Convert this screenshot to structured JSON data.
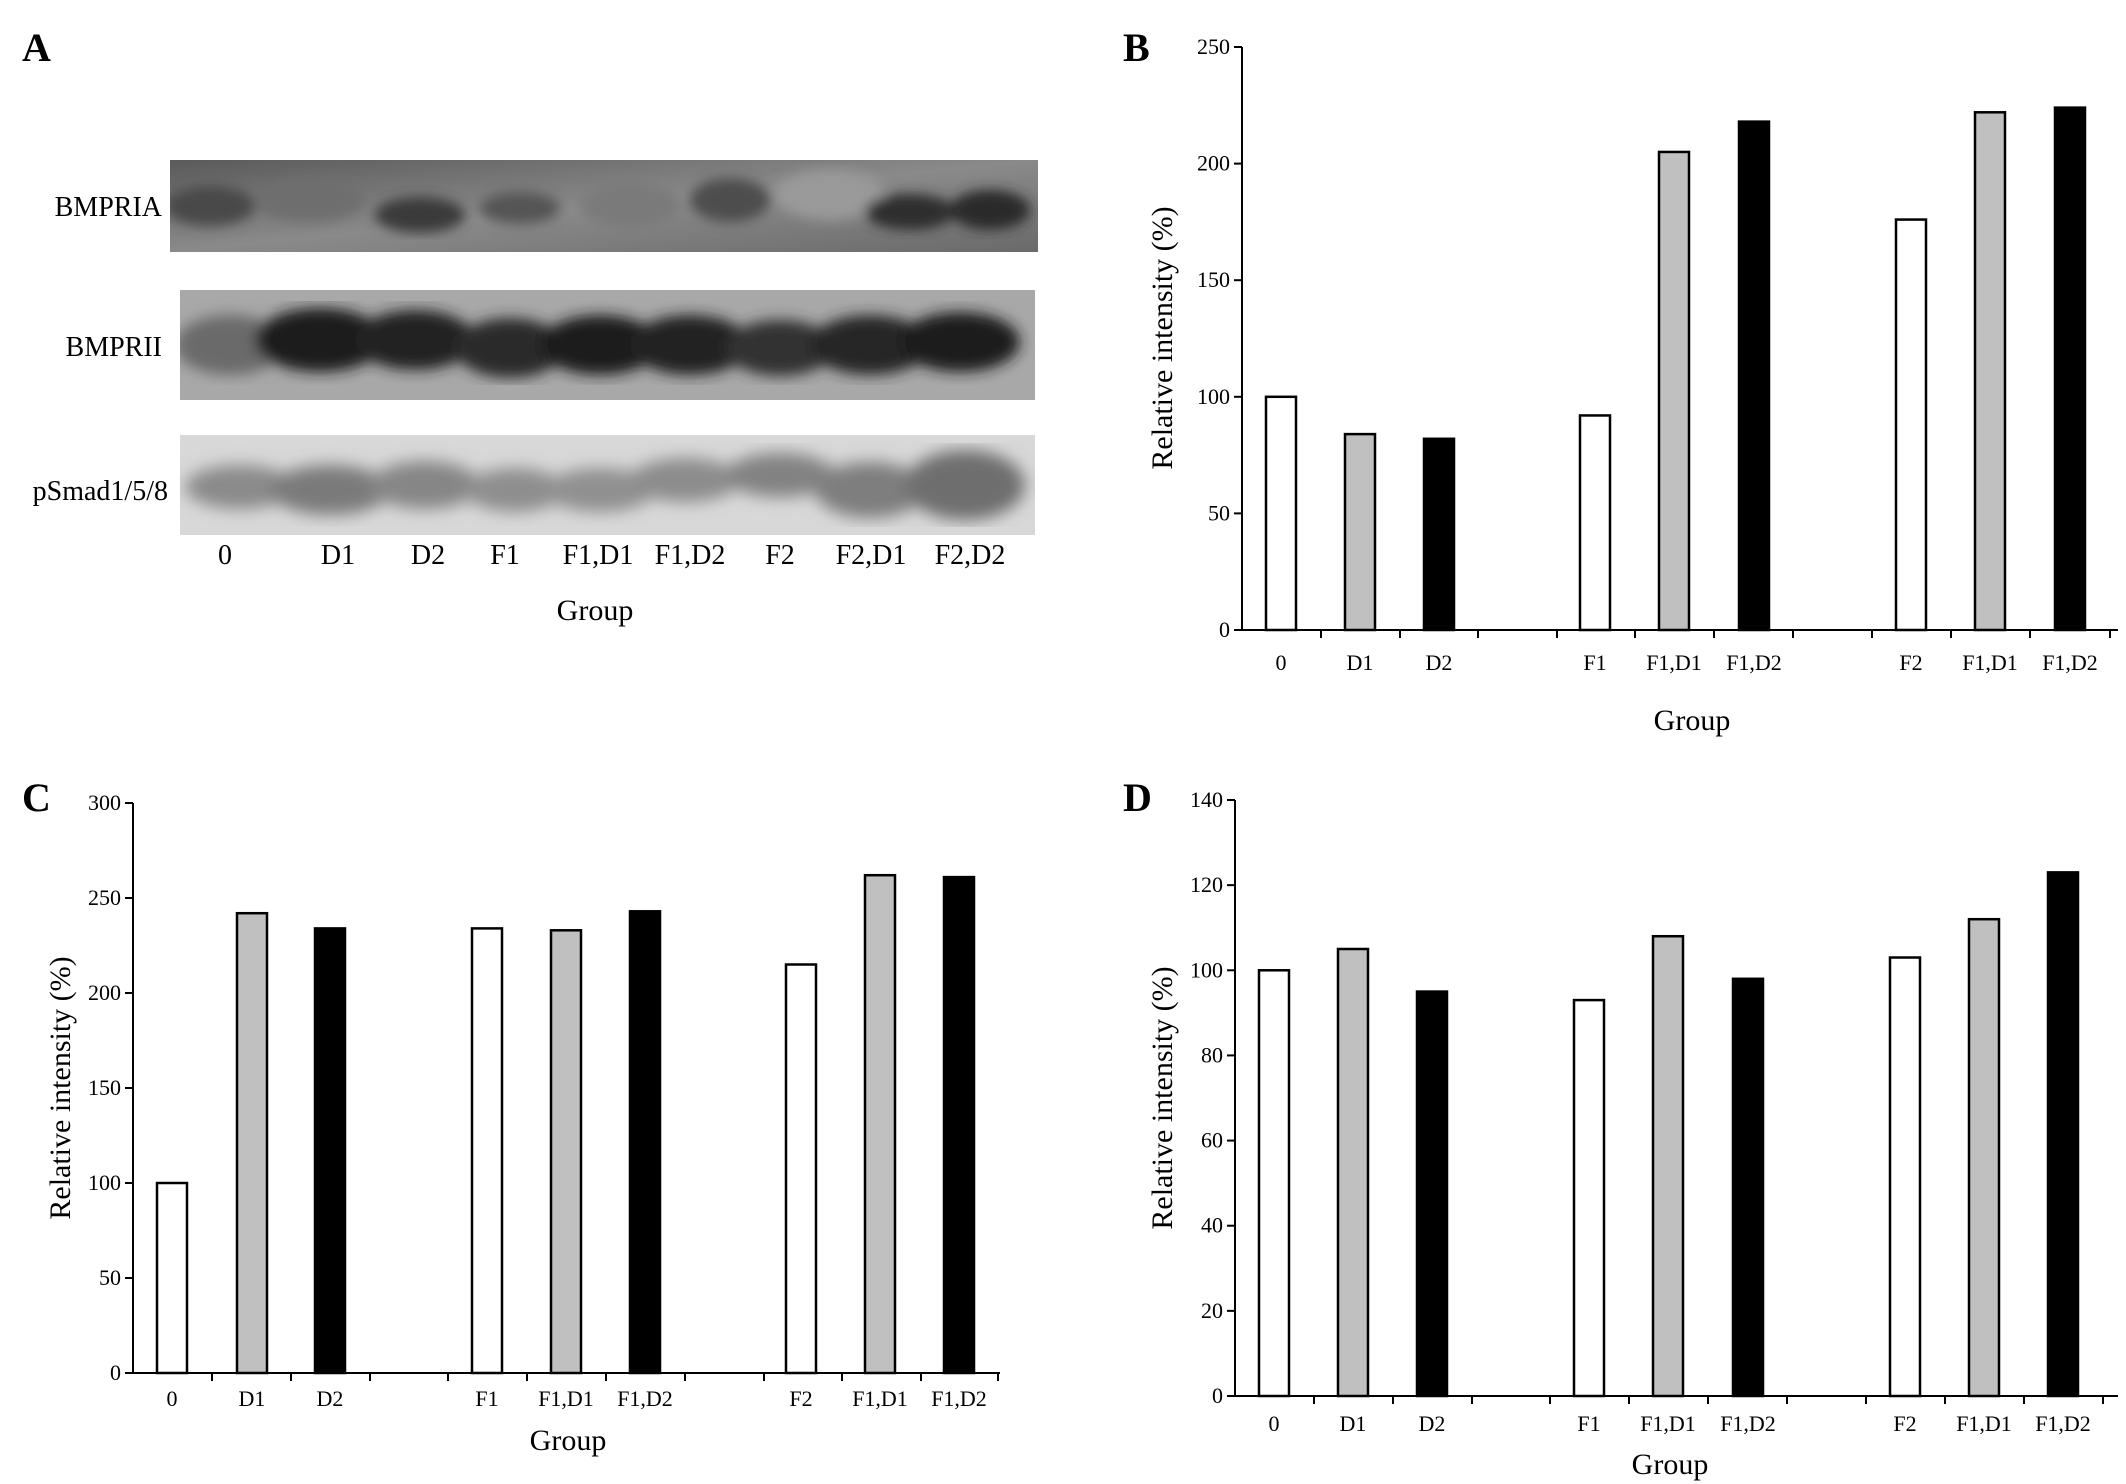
{
  "panels": {
    "a": {
      "letter": "A"
    },
    "b": {
      "letter": "B"
    },
    "c": {
      "letter": "C"
    },
    "d": {
      "letter": "D"
    }
  },
  "blot": {
    "rows": [
      {
        "label": "BMPRIA"
      },
      {
        "label": "BMPRII"
      },
      {
        "label": "pSmad1/5/8"
      }
    ],
    "lanes": [
      "0",
      "D1",
      "D2",
      "F1",
      "F1,D1",
      "F1,D2",
      "F2",
      "F2,D1",
      "F2,D2"
    ],
    "xlabel": "Group"
  },
  "colors": {
    "white": "#ffffff",
    "gray": "#c0c0c0",
    "black": "#000000",
    "outline": "#000000"
  },
  "chart_data": [
    {
      "panel": "B",
      "type": "bar",
      "categories": [
        "0",
        "D1",
        "D2",
        "F1",
        "F1,D1",
        "F1,D2",
        "F2",
        "F1,D1",
        "F1,D2"
      ],
      "values": [
        100,
        84,
        82,
        92,
        205,
        218,
        176,
        222,
        224
      ],
      "bar_colors": [
        "white",
        "gray",
        "black",
        "white",
        "gray",
        "black",
        "white",
        "gray",
        "black"
      ],
      "xlabel": "Group",
      "ylabel": "Relative  intensity (%)",
      "ylim": [
        0,
        250
      ],
      "yticks": [
        0,
        50,
        100,
        150,
        200,
        250
      ],
      "grid": false
    },
    {
      "panel": "C",
      "type": "bar",
      "categories": [
        "0",
        "D1",
        "D2",
        "F1",
        "F1,D1",
        "F1,D2",
        "F2",
        "F1,D1",
        "F1,D2"
      ],
      "values": [
        100,
        242,
        234,
        234,
        233,
        243,
        215,
        262,
        261
      ],
      "bar_colors": [
        "white",
        "gray",
        "black",
        "white",
        "gray",
        "black",
        "white",
        "gray",
        "black"
      ],
      "xlabel": "Group",
      "ylabel": "Relative  intensity (%)",
      "ylim": [
        0,
        300
      ],
      "yticks": [
        0,
        50,
        100,
        150,
        200,
        250,
        300
      ],
      "grid": false
    },
    {
      "panel": "D",
      "type": "bar",
      "categories": [
        "0",
        "D1",
        "D2",
        "F1",
        "F1,D1",
        "F1,D2",
        "F2",
        "F1,D1",
        "F1,D2"
      ],
      "values": [
        100,
        105,
        95,
        93,
        108,
        98,
        103,
        112,
        123
      ],
      "bar_colors": [
        "white",
        "gray",
        "black",
        "white",
        "gray",
        "black",
        "white",
        "gray",
        "black"
      ],
      "xlabel": "Group",
      "ylabel": "Relative  intensity (%)",
      "ylim": [
        0,
        140
      ],
      "yticks": [
        0,
        20,
        40,
        60,
        80,
        100,
        120,
        140
      ],
      "grid": false
    }
  ]
}
